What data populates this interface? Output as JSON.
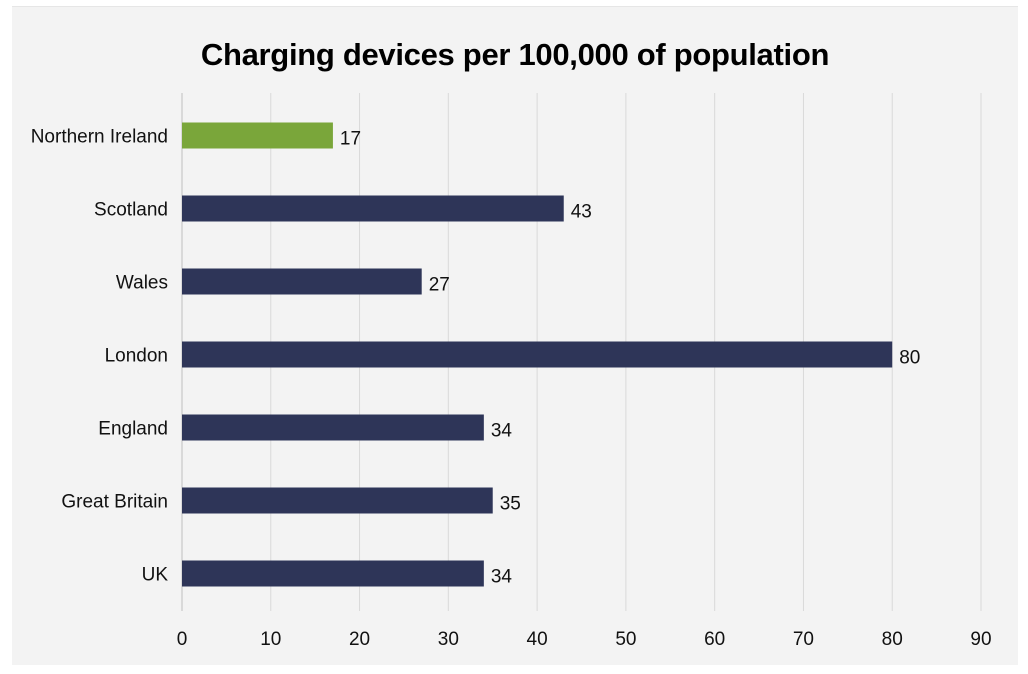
{
  "chart_data": {
    "type": "bar",
    "orientation": "horizontal",
    "title": "Charging devices per 100,000 of population",
    "categories": [
      "Northern Ireland",
      "Scotland",
      "Wales",
      "London",
      "England",
      "Great Britain",
      "UK"
    ],
    "values": [
      17,
      43,
      27,
      80,
      34,
      35,
      34
    ],
    "colors": [
      "#7aa63a",
      "#2e3558",
      "#2e3558",
      "#2e3558",
      "#2e3558",
      "#2e3558",
      "#2e3558"
    ],
    "xlim": [
      0,
      90
    ],
    "xticks": [
      0,
      10,
      20,
      30,
      40,
      50,
      60,
      70,
      80,
      90
    ],
    "xlabel": "",
    "ylabel": "",
    "grid": "vertical",
    "legend": "none"
  }
}
